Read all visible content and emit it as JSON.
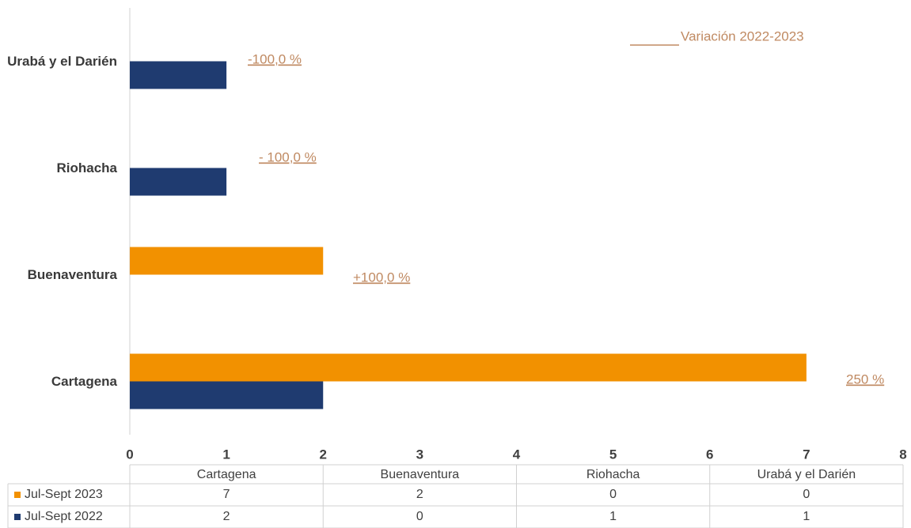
{
  "chart_data": {
    "type": "hbar",
    "categories": [
      "Cartagena",
      "Buenaventura",
      "Riohacha",
      "Urabá y el Darién"
    ],
    "series": [
      {
        "name": "Jul-Sept 2023",
        "color": "#f29100",
        "values": [
          7,
          2,
          0,
          0
        ]
      },
      {
        "name": "Jul-Sept 2022",
        "color": "#1f3b70",
        "values": [
          2,
          0,
          1,
          1
        ]
      }
    ],
    "xlim": [
      0,
      8
    ],
    "xticks": [
      0,
      1,
      2,
      3,
      4,
      5,
      6,
      7,
      8
    ],
    "annotations": [
      "250 %",
      "+100,0 %",
      "- 100,0 %",
      "-100,0 %"
    ],
    "variation_label": "Variación 2022-2023",
    "data_table": true
  }
}
